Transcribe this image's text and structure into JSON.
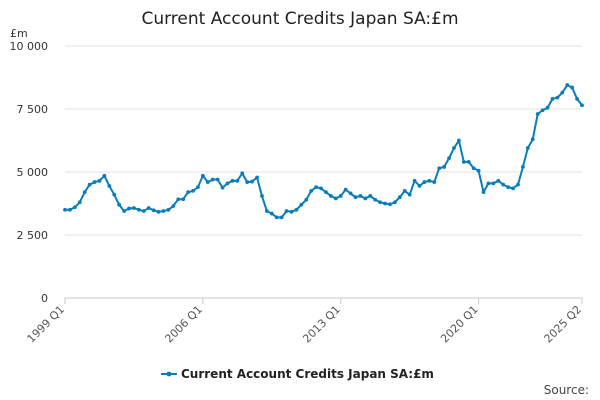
{
  "chart_data": {
    "type": "line",
    "title": "Current Account Credits Japan SA:£m",
    "unit_label": "£m",
    "ylim": [
      0,
      10000
    ],
    "yticks": [
      0,
      2500,
      5000,
      7500,
      10000
    ],
    "ytick_labels": [
      "0",
      "2 500",
      "5 000",
      "7 500",
      "10 000"
    ],
    "xtick_labels": [
      "1999 Q1",
      "2006 Q1",
      "2013 Q1",
      "2020 Q1",
      "2025 Q2"
    ],
    "grid": true,
    "legend_position": "bottom",
    "source_label": "Source:",
    "series": [
      {
        "name": "Current Account Credits Japan SA:£m",
        "color": "#0a7dba",
        "x": [
          "1999 Q1",
          "1999 Q2",
          "1999 Q3",
          "1999 Q4",
          "2000 Q1",
          "2000 Q2",
          "2000 Q3",
          "2000 Q4",
          "2001 Q1",
          "2001 Q2",
          "2001 Q3",
          "2001 Q4",
          "2002 Q1",
          "2002 Q2",
          "2002 Q3",
          "2002 Q4",
          "2003 Q1",
          "2003 Q2",
          "2003 Q3",
          "2003 Q4",
          "2004 Q1",
          "2004 Q2",
          "2004 Q3",
          "2004 Q4",
          "2005 Q1",
          "2005 Q2",
          "2005 Q3",
          "2005 Q4",
          "2006 Q1",
          "2006 Q2",
          "2006 Q3",
          "2006 Q4",
          "2007 Q1",
          "2007 Q2",
          "2007 Q3",
          "2007 Q4",
          "2008 Q1",
          "2008 Q2",
          "2008 Q3",
          "2008 Q4",
          "2009 Q1",
          "2009 Q2",
          "2009 Q3",
          "2009 Q4",
          "2010 Q1",
          "2010 Q2",
          "2010 Q3",
          "2010 Q4",
          "2011 Q1",
          "2011 Q2",
          "2011 Q3",
          "2011 Q4",
          "2012 Q1",
          "2012 Q2",
          "2012 Q3",
          "2012 Q4",
          "2013 Q1",
          "2013 Q2",
          "2013 Q3",
          "2013 Q4",
          "2014 Q1",
          "2014 Q2",
          "2014 Q3",
          "2014 Q4",
          "2015 Q1",
          "2015 Q2",
          "2015 Q3",
          "2015 Q4",
          "2016 Q1",
          "2016 Q2",
          "2016 Q3",
          "2016 Q4",
          "2017 Q1",
          "2017 Q2",
          "2017 Q3",
          "2017 Q4",
          "2018 Q1",
          "2018 Q2",
          "2018 Q3",
          "2018 Q4",
          "2019 Q1",
          "2019 Q2",
          "2019 Q3",
          "2019 Q4",
          "2020 Q1",
          "2020 Q2",
          "2020 Q3",
          "2020 Q4",
          "2021 Q1",
          "2021 Q2",
          "2021 Q3",
          "2021 Q4",
          "2022 Q1",
          "2022 Q2",
          "2022 Q3",
          "2022 Q4",
          "2023 Q1",
          "2023 Q2",
          "2023 Q3",
          "2023 Q4",
          "2024 Q1",
          "2024 Q2",
          "2024 Q3",
          "2024 Q4",
          "2025 Q1",
          "2025 Q2"
        ],
        "values": [
          3500,
          3500,
          3600,
          3800,
          4200,
          4500,
          4600,
          4650,
          4850,
          4450,
          4100,
          3700,
          3450,
          3550,
          3570,
          3500,
          3450,
          3570,
          3480,
          3420,
          3450,
          3500,
          3650,
          3920,
          3920,
          4200,
          4250,
          4400,
          4850,
          4600,
          4700,
          4700,
          4380,
          4550,
          4650,
          4650,
          4950,
          4600,
          4620,
          4780,
          4050,
          3450,
          3350,
          3200,
          3200,
          3450,
          3420,
          3500,
          3700,
          3900,
          4250,
          4400,
          4350,
          4200,
          4050,
          3950,
          4050,
          4300,
          4150,
          4000,
          4050,
          3950,
          4050,
          3900,
          3800,
          3750,
          3720,
          3800,
          4000,
          4250,
          4100,
          4650,
          4450,
          4600,
          4650,
          4600,
          5150,
          5200,
          5550,
          5950,
          6250,
          5400,
          5400,
          5150,
          5050,
          4200,
          4550,
          4550,
          4650,
          4500,
          4400,
          4350,
          4500,
          5200,
          5950,
          6300,
          7300,
          7450,
          7550,
          7900,
          7950,
          8150,
          8450,
          8350,
          7900,
          7650
        ]
      }
    ]
  }
}
